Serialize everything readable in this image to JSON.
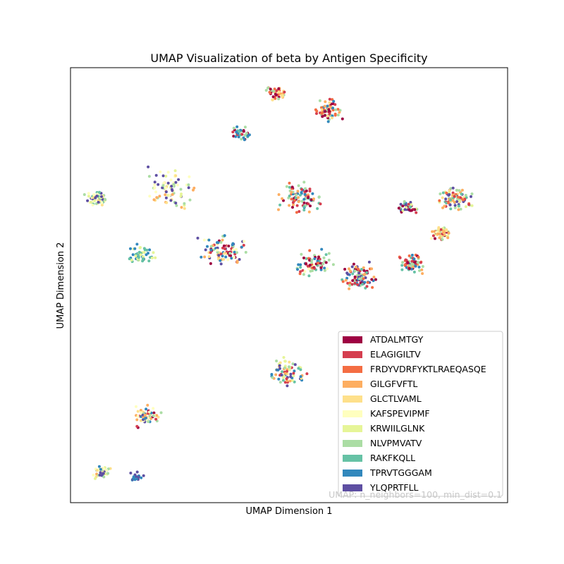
{
  "chart_data": {
    "type": "scatter",
    "title": "UMAP Visualization of beta by Antigen Specificity",
    "xlabel": "UMAP Dimension 1",
    "ylabel": "UMAP Dimension 2",
    "xticks": "none",
    "yticks": "none",
    "grid": false,
    "legend_position": "lower-right",
    "annotation": "UMAP: n_neighbors=100, min_dist=0.1",
    "series": [
      {
        "name": "ATDALMTGY",
        "color": "#9e0142"
      },
      {
        "name": "ELAGIGILTV",
        "color": "#d53e4f"
      },
      {
        "name": "FRDYVDRFYKTLRAEQASQE",
        "color": "#f46d43"
      },
      {
        "name": "GILGFVFTL",
        "color": "#fdae61"
      },
      {
        "name": "GLCTLVAML",
        "color": "#fee08b"
      },
      {
        "name": "KAFSPEVIPMF",
        "color": "#ffffbf"
      },
      {
        "name": "KRWIILGLNK",
        "color": "#e6f598"
      },
      {
        "name": "NLVPMVATV",
        "color": "#abdda4"
      },
      {
        "name": "RAKFKQLL",
        "color": "#66c2a5"
      },
      {
        "name": "TPRVTGGGAM",
        "color": "#3288bd"
      },
      {
        "name": "YLQPRTFLL",
        "color": "#5e4fa2"
      }
    ],
    "clusters": [
      {
        "x": 0.47,
        "y": 0.94,
        "spread": 0.025,
        "n": 40,
        "mix": [
          0,
          1,
          2,
          3,
          4,
          7
        ]
      },
      {
        "x": 0.59,
        "y": 0.9,
        "spread": 0.03,
        "n": 70,
        "mix": [
          0,
          1,
          2,
          3,
          4,
          7,
          9
        ]
      },
      {
        "x": 0.39,
        "y": 0.85,
        "spread": 0.02,
        "n": 40,
        "mix": [
          0,
          1,
          7,
          9,
          8
        ]
      },
      {
        "x": 0.53,
        "y": 0.7,
        "spread": 0.045,
        "n": 90,
        "mix": [
          0,
          1,
          2,
          3,
          7,
          8,
          9
        ]
      },
      {
        "x": 0.06,
        "y": 0.7,
        "spread": 0.025,
        "n": 60,
        "mix": [
          4,
          5,
          6,
          7,
          8,
          10
        ]
      },
      {
        "x": 0.22,
        "y": 0.72,
        "spread": 0.06,
        "n": 80,
        "mix": [
          3,
          4,
          5,
          6,
          7,
          10
        ]
      },
      {
        "x": 0.16,
        "y": 0.57,
        "spread": 0.03,
        "n": 50,
        "mix": [
          7,
          8,
          6,
          9
        ]
      },
      {
        "x": 0.35,
        "y": 0.58,
        "spread": 0.05,
        "n": 90,
        "mix": [
          0,
          1,
          3,
          4,
          5,
          7,
          9,
          10
        ]
      },
      {
        "x": 0.56,
        "y": 0.55,
        "spread": 0.04,
        "n": 70,
        "mix": [
          0,
          1,
          2,
          5,
          7,
          8,
          9
        ]
      },
      {
        "x": 0.66,
        "y": 0.52,
        "spread": 0.04,
        "n": 90,
        "mix": [
          0,
          1,
          2,
          3,
          7,
          8,
          9,
          10
        ]
      },
      {
        "x": 0.78,
        "y": 0.55,
        "spread": 0.03,
        "n": 70,
        "mix": [
          0,
          1,
          2,
          3,
          7,
          8,
          9
        ]
      },
      {
        "x": 0.77,
        "y": 0.68,
        "spread": 0.02,
        "n": 40,
        "mix": [
          0,
          1,
          6,
          7,
          8,
          9,
          10
        ]
      },
      {
        "x": 0.88,
        "y": 0.7,
        "spread": 0.035,
        "n": 90,
        "mix": [
          1,
          2,
          3,
          4,
          6,
          7,
          8,
          10
        ]
      },
      {
        "x": 0.85,
        "y": 0.62,
        "spread": 0.02,
        "n": 60,
        "mix": [
          0,
          1,
          3,
          4,
          5,
          6,
          7
        ]
      },
      {
        "x": 0.5,
        "y": 0.3,
        "spread": 0.04,
        "n": 70,
        "mix": [
          1,
          3,
          4,
          6,
          7,
          8,
          9,
          10
        ]
      },
      {
        "x": 0.17,
        "y": 0.2,
        "spread": 0.03,
        "n": 60,
        "mix": [
          0,
          1,
          3,
          4,
          5,
          7,
          9,
          10
        ]
      },
      {
        "x": 0.07,
        "y": 0.07,
        "spread": 0.02,
        "n": 40,
        "mix": [
          3,
          4,
          5,
          6,
          7,
          9,
          10
        ]
      },
      {
        "x": 0.15,
        "y": 0.06,
        "spread": 0.015,
        "n": 20,
        "mix": [
          9,
          10
        ]
      }
    ]
  }
}
